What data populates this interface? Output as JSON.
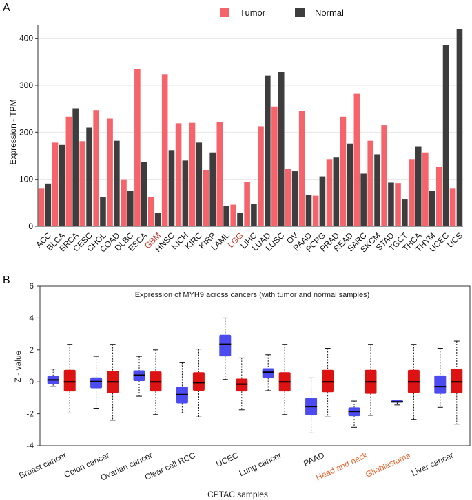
{
  "panel_labels": {
    "a": "A",
    "b": "B"
  },
  "colors": {
    "tumor": "#f5646b",
    "normal": "#3d3d3d",
    "highlight_label": "#c0392b",
    "box_blue": "#4b4bf0",
    "box_red": "#dd1212"
  },
  "chart_data": [
    {
      "id": "A",
      "type": "bar",
      "ylabel": "Expression - TPM",
      "xlabel": "",
      "ylim": [
        0,
        420
      ],
      "yticks": [
        0,
        100,
        200,
        300,
        400
      ],
      "grid": true,
      "legend_position": "top-center",
      "categories": [
        "ACC",
        "BLCA",
        "BRCA",
        "CESC",
        "CHOL",
        "COAD",
        "DLBC",
        "ESCA",
        "GBM",
        "HNSC",
        "KICH",
        "KIRC",
        "KIRP",
        "LAML",
        "LGG",
        "LIHC",
        "LUAD",
        "LUSC",
        "OV",
        "PAAD",
        "PCPG",
        "PRAD",
        "READ",
        "SARC",
        "SKCM",
        "STAD",
        "TGCT",
        "THCA",
        "THYM",
        "UCEC",
        "UCS"
      ],
      "highlighted_categories": [
        "GBM",
        "LGG"
      ],
      "series": [
        {
          "name": "Tumor",
          "values": [
            80,
            178,
            233,
            181,
            247,
            229,
            100,
            335,
            63,
            323,
            219,
            220,
            120,
            222,
            46,
            95,
            213,
            255,
            123,
            245,
            65,
            143,
            233,
            283,
            182,
            215,
            92,
            143,
            157,
            126,
            80
          ]
        },
        {
          "name": "Normal",
          "values": [
            91,
            173,
            251,
            210,
            62,
            182,
            75,
            137,
            28,
            162,
            140,
            178,
            157,
            43,
            28,
            48,
            321,
            328,
            117,
            67,
            106,
            146,
            176,
            112,
            153,
            93,
            57,
            169,
            75,
            385,
            420
          ]
        }
      ]
    },
    {
      "id": "B",
      "type": "box",
      "title": "Expression of MYH9 across cancers (with tumor and normal samples)",
      "xlabel": "CPTAC samples",
      "ylabel": "Z - value",
      "ylim": [
        -4,
        6
      ],
      "yticks": [
        -4,
        -2,
        0,
        2,
        4,
        6
      ],
      "categories": [
        "Breast cancer",
        "Colon cancer",
        "Ovarian cancer",
        "Clear cell RCC",
        "UCEC",
        "Lung cancer",
        "PAAD",
        "Head and neck",
        "Glioblastoma",
        "Liver cancer"
      ],
      "highlighted_categories": [
        "Head and neck",
        "Glioblastoma"
      ],
      "series": [
        {
          "name": "Normal",
          "boxes": [
            {
              "min": -0.3,
              "q1": -0.15,
              "median": 0.12,
              "q3": 0.38,
              "max": 0.8
            },
            {
              "min": -1.65,
              "q1": -0.4,
              "median": 0.02,
              "q3": 0.28,
              "max": 1.6
            },
            {
              "min": -0.9,
              "q1": 0.05,
              "median": 0.42,
              "q3": 0.72,
              "max": 1.6
            },
            {
              "min": -1.95,
              "q1": -1.35,
              "median": -0.8,
              "q3": -0.3,
              "max": 1.2
            },
            {
              "min": 0.15,
              "q1": 1.6,
              "median": 2.35,
              "q3": 2.95,
              "max": 4.0
            },
            {
              "min": -0.55,
              "q1": 0.25,
              "median": 0.6,
              "q3": 0.85,
              "max": 1.7
            },
            {
              "min": -3.2,
              "q1": -2.1,
              "median": -1.55,
              "q3": -1.0,
              "max": 0.25
            },
            {
              "min": -2.85,
              "q1": -2.15,
              "median": -1.85,
              "q3": -1.6,
              "max": -1.2
            },
            {
              "min": -1.45,
              "q1": -1.3,
              "median": -1.25,
              "q3": -1.15,
              "max": -1.15
            },
            {
              "min": -1.6,
              "q1": -0.75,
              "median": -0.3,
              "q3": 0.4,
              "max": 2.1
            }
          ]
        },
        {
          "name": "Tumor",
          "boxes": [
            {
              "min": -1.95,
              "q1": -0.6,
              "median": 0.0,
              "q3": 0.75,
              "max": 2.35
            },
            {
              "min": -2.4,
              "q1": -0.7,
              "median": 0.0,
              "q3": 0.7,
              "max": 2.35
            },
            {
              "min": -2.05,
              "q1": -0.6,
              "median": 0.0,
              "q3": 0.65,
              "max": 2.0
            },
            {
              "min": -2.2,
              "q1": -0.55,
              "median": -0.05,
              "q3": 0.6,
              "max": 2.05
            },
            {
              "min": -1.75,
              "q1": -0.6,
              "median": -0.15,
              "q3": 0.2,
              "max": 1.5
            },
            {
              "min": -2.05,
              "q1": -0.6,
              "median": 0.0,
              "q3": 0.6,
              "max": 2.35
            },
            {
              "min": -2.2,
              "q1": -0.65,
              "median": 0.0,
              "q3": 0.75,
              "max": 2.1
            },
            {
              "min": -2.1,
              "q1": -0.75,
              "median": 0.0,
              "q3": 0.75,
              "max": 2.35
            },
            {
              "min": -2.35,
              "q1": -0.7,
              "median": 0.0,
              "q3": 0.75,
              "max": 2.35
            },
            {
              "min": -2.65,
              "q1": -0.7,
              "median": 0.0,
              "q3": 0.8,
              "max": 2.55
            }
          ]
        }
      ]
    }
  ]
}
